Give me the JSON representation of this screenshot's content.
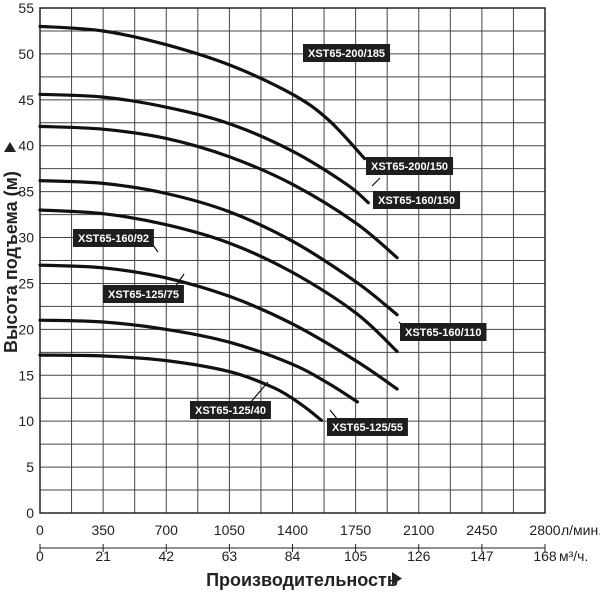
{
  "chart_data": {
    "type": "line",
    "ylabel": "Высота подъема (м)",
    "xlabel": "Производительность",
    "x_unit_primary": "л/мин.",
    "x_unit_secondary": "м³/ч.",
    "ylim": [
      0,
      55
    ],
    "xlim": [
      0,
      2800
    ],
    "grid": true,
    "y_ticks": [
      "0",
      "5",
      "10",
      "15",
      "20",
      "25",
      "30",
      "35",
      "40",
      "45",
      "50",
      "55"
    ],
    "x_ticks_primary": [
      "0",
      "350",
      "700",
      "1050",
      "1400",
      "1750",
      "2100",
      "2450",
      "2800"
    ],
    "x_ticks_secondary": [
      "0",
      "21",
      "42",
      "63",
      "84",
      "105",
      "126",
      "147",
      "168"
    ],
    "line_color": "#111111",
    "label_bg": "#1e1e1e",
    "series": [
      {
        "name": "XST65-200/185",
        "x": [
          0,
          350,
          700,
          1050,
          1400,
          1600,
          1800
        ],
        "y": [
          53,
          52.5,
          51,
          48.8,
          45.6,
          42.8,
          38.6
        ]
      },
      {
        "name": "XST65-200/150",
        "x": [
          0,
          350,
          700,
          1050,
          1400,
          1700,
          1820
        ],
        "y": [
          45.6,
          45.3,
          44.2,
          42.4,
          39.4,
          35.8,
          33.8
        ]
      },
      {
        "name": "XST65-160/150",
        "x": [
          0,
          350,
          700,
          1050,
          1400,
          1750,
          1980
        ],
        "y": [
          42.1,
          41.8,
          40.8,
          38.8,
          35.8,
          31.6,
          27.8
        ]
      },
      {
        "name": "XST65-160/92",
        "x": [
          0,
          350,
          700,
          1050,
          1400,
          1750,
          1980
        ],
        "y": [
          33,
          32.6,
          31.4,
          29.4,
          26.2,
          21.8,
          17.6
        ]
      },
      {
        "name": "XST65-160/110",
        "x": [
          0,
          350,
          700,
          1050,
          1400,
          1750,
          1980
        ],
        "y": [
          36.2,
          35.9,
          34.8,
          32.8,
          29.6,
          25.2,
          21.6
        ]
      },
      {
        "name": "XST65-125/75",
        "x": [
          0,
          350,
          700,
          1050,
          1400,
          1750,
          1980
        ],
        "y": [
          27,
          26.7,
          25.6,
          23.6,
          20.6,
          16.6,
          13.5
        ]
      },
      {
        "name": "XST65-125/55",
        "x": [
          0,
          350,
          700,
          1050,
          1400,
          1600,
          1760
        ],
        "y": [
          21,
          20.8,
          20,
          18.6,
          16.2,
          14.1,
          12.1
        ]
      },
      {
        "name": "XST65-125/40",
        "x": [
          0,
          350,
          700,
          1050,
          1300,
          1450,
          1560
        ],
        "y": [
          17.2,
          17.1,
          16.6,
          15.4,
          13.6,
          11.8,
          10.1
        ]
      }
    ]
  }
}
